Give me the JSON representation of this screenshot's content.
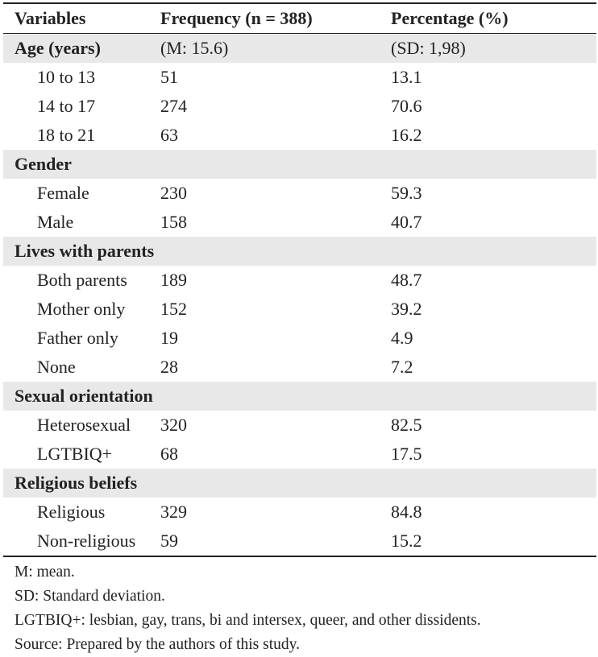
{
  "headers": [
    "Variables",
    "Frequency (n = 388)",
    "Percentage (%)"
  ],
  "groups": [
    {
      "label": "Age (years)",
      "frequency": "(M: 15.6)",
      "percentage": "(SD: 1,98)",
      "rows": [
        {
          "label": "10 to 13",
          "frequency": "51",
          "percentage": "13.1"
        },
        {
          "label": "14 to 17",
          "frequency": "274",
          "percentage": "70.6"
        },
        {
          "label": "18 to 21",
          "frequency": "63",
          "percentage": "16.2"
        }
      ]
    },
    {
      "label": "Gender",
      "frequency": "",
      "percentage": "",
      "rows": [
        {
          "label": "Female",
          "frequency": "230",
          "percentage": "59.3"
        },
        {
          "label": "Male",
          "frequency": "158",
          "percentage": "40.7"
        }
      ]
    },
    {
      "label": "Lives with parents",
      "frequency": "",
      "percentage": "",
      "rows": [
        {
          "label": "Both parents",
          "frequency": "189",
          "percentage": "48.7"
        },
        {
          "label": "Mother only",
          "frequency": "152",
          "percentage": "39.2"
        },
        {
          "label": "Father only",
          "frequency": "19",
          "percentage": "4.9"
        },
        {
          "label": "None",
          "frequency": "28",
          "percentage": "7.2"
        }
      ]
    },
    {
      "label": "Sexual orientation",
      "frequency": "",
      "percentage": "",
      "rows": [
        {
          "label": "Heterosexual",
          "frequency": "320",
          "percentage": "82.5"
        },
        {
          "label": "LGTBIQ+",
          "frequency": "68",
          "percentage": "17.5"
        }
      ]
    },
    {
      "label": "Religious beliefs",
      "frequency": "",
      "percentage": "",
      "rows": [
        {
          "label": "Religious",
          "frequency": "329",
          "percentage": "84.8"
        },
        {
          "label": "Non-religious",
          "frequency": "59",
          "percentage": "15.2"
        }
      ]
    }
  ],
  "notes": [
    "M: mean.",
    "SD: Standard deviation.",
    "LGTBIQ+: lesbian, gay, trans, bi and intersex, queer, and other dissidents.",
    "Source: Prepared by the authors of this study."
  ]
}
